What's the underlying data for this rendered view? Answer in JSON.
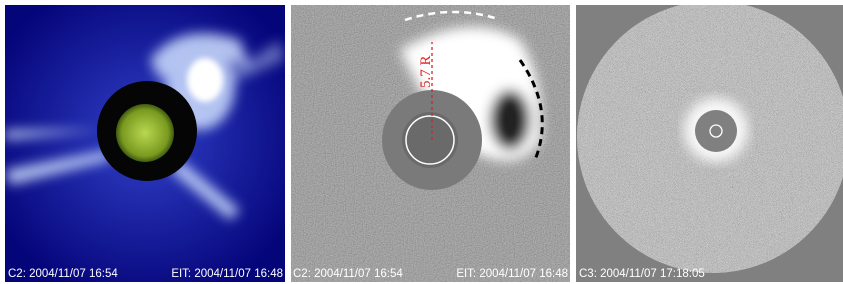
{
  "panels": [
    {
      "labels": [
        "C2: 2004/11/07 16:54",
        "EIT: 2004/11/07 16:48"
      ]
    },
    {
      "labels": [
        "C2: 2004/11/07 16:54",
        "EIT: 2004/11/07 16:48"
      ],
      "annotation": "5.7 R"
    },
    {
      "labels": [
        "C3: 2004/11/07 17:18:05"
      ]
    }
  ]
}
